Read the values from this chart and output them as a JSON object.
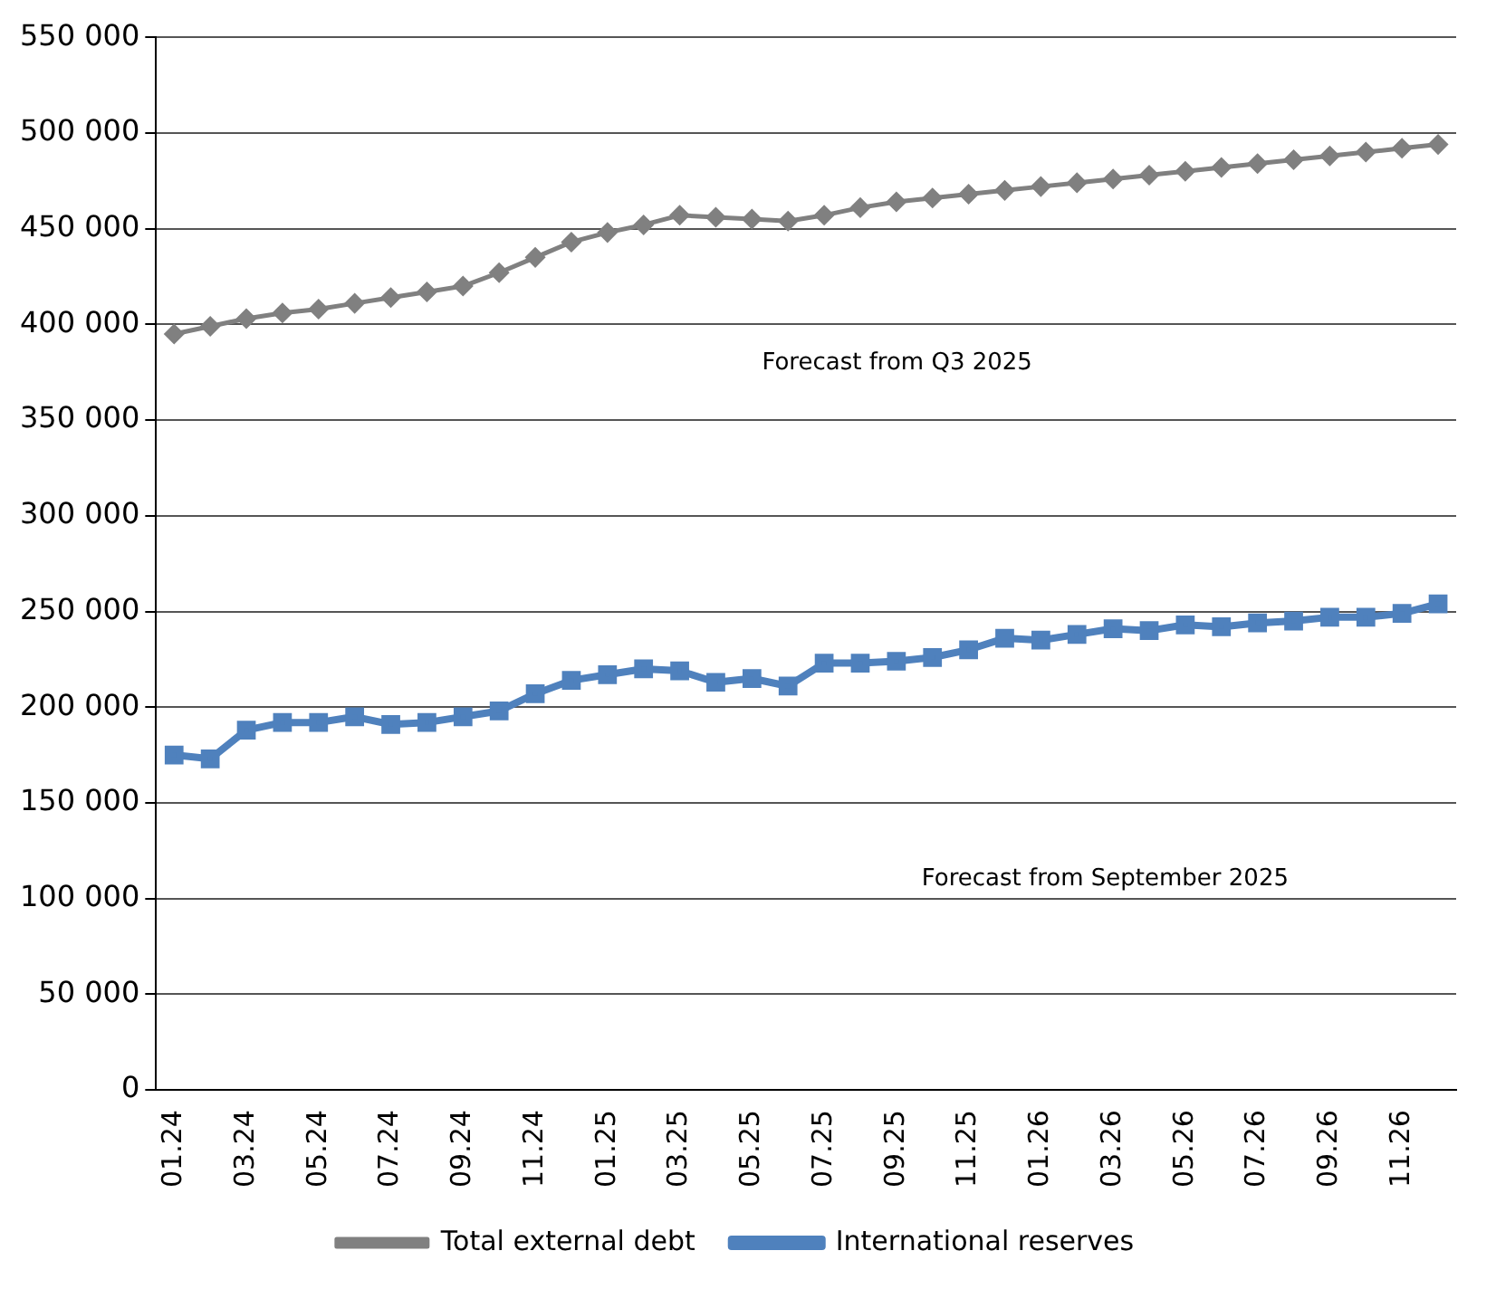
{
  "chart_data": {
    "type": "line",
    "categories": [
      "01.24",
      null,
      "03.24",
      null,
      "05.24",
      null,
      "07.24",
      null,
      "09.24",
      null,
      "11.24",
      null,
      "01.25",
      null,
      "03.25",
      null,
      "05.25",
      null,
      "07.25",
      null,
      "09.25",
      null,
      "11.25",
      null,
      "01.26",
      null,
      "03.26",
      null,
      "05.26",
      null,
      "07.26",
      null,
      "09.26",
      null,
      "11.26",
      null
    ],
    "series": [
      {
        "name": "International reserves",
        "color": "#4f81bd",
        "marker": "square",
        "values": [
          175000,
          173000,
          188000,
          192000,
          192000,
          195000,
          191000,
          192000,
          195000,
          198000,
          207000,
          214000,
          217000,
          220000,
          219000,
          213000,
          215000,
          211000,
          223000,
          223000,
          224000,
          226000,
          230000,
          236000,
          235000,
          238000,
          241000,
          240000,
          243000,
          242000,
          244000,
          245000,
          247000,
          247000,
          249000,
          254000
        ]
      },
      {
        "name": "Total external debt",
        "color": "#808080",
        "marker": "diamond",
        "values": [
          395000,
          399000,
          403000,
          406000,
          408000,
          411000,
          414000,
          417000,
          420000,
          427000,
          435000,
          443000,
          448000,
          452000,
          457000,
          456000,
          455000,
          454000,
          457000,
          461000,
          464000,
          466000,
          468000,
          470000,
          472000,
          474000,
          476000,
          478000,
          480000,
          482000,
          484000,
          486000,
          488000,
          490000,
          492000,
          494000
        ]
      }
    ],
    "ylim": [
      0,
      550000
    ],
    "yticks": [
      {
        "value": 0,
        "label": "0"
      },
      {
        "value": 50000,
        "label": "50 000"
      },
      {
        "value": 100000,
        "label": "100 000"
      },
      {
        "value": 150000,
        "label": "150 000"
      },
      {
        "value": 200000,
        "label": "200 000"
      },
      {
        "value": 250000,
        "label": "250 000"
      },
      {
        "value": 300000,
        "label": "300 000"
      },
      {
        "value": 350000,
        "label": "350 000"
      },
      {
        "value": 400000,
        "label": "400 000"
      },
      {
        "value": 450000,
        "label": "450 000"
      },
      {
        "value": 500000,
        "label": "500 000"
      },
      {
        "value": 550000,
        "label": "550 000"
      }
    ],
    "grid": "y",
    "legend": "bottom",
    "annotations": [
      "Forecast from Q3 2025",
      "Forecast from September 2025"
    ]
  }
}
